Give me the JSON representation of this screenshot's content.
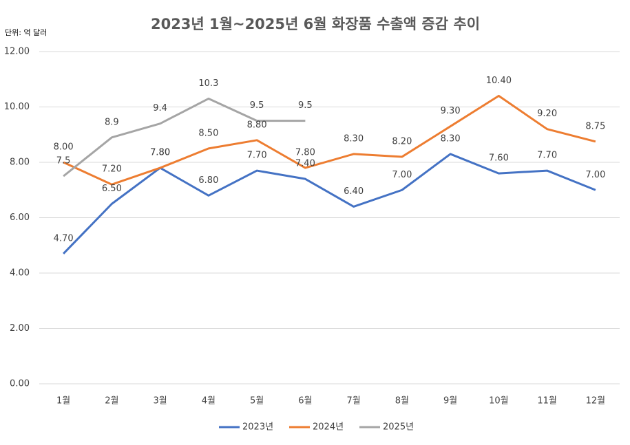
{
  "chart_data": {
    "type": "line",
    "title": "2023년 1월~2025년 6월 화장품 수출액 증감 추이",
    "unit_label": "단위: 억 달러",
    "categories": [
      "1월",
      "2월",
      "3월",
      "4월",
      "5월",
      "6월",
      "7월",
      "8월",
      "9월",
      "10월",
      "11월",
      "12월"
    ],
    "series": [
      {
        "name": "2023년",
        "color": "#4472c4",
        "values": [
          4.7,
          6.5,
          7.8,
          6.8,
          7.7,
          7.4,
          6.4,
          7.0,
          8.3,
          7.6,
          7.7,
          7.0
        ],
        "value_labels": [
          "4.70",
          "6.50",
          "7.80",
          "6.80",
          "7.70",
          "7.40",
          "6.40",
          "7.00",
          "8.30",
          "7.60",
          "7.70",
          "7.00"
        ]
      },
      {
        "name": "2024년",
        "color": "#ed7d31",
        "values": [
          8.0,
          7.2,
          7.8,
          8.5,
          8.8,
          7.8,
          8.3,
          8.2,
          9.3,
          10.4,
          9.2,
          8.75
        ],
        "value_labels": [
          "8.00",
          "7.20",
          "7.80",
          "8.50",
          "8.80",
          "7.80",
          "8.30",
          "8.20",
          "9.30",
          "10.40",
          "9.20",
          "8.75"
        ]
      },
      {
        "name": "2025년",
        "color": "#a5a5a5",
        "values": [
          7.5,
          8.9,
          9.4,
          10.3,
          9.5,
          9.5,
          null,
          null,
          null,
          null,
          null,
          null
        ]
      }
    ],
    "ylim": [
      0,
      12
    ],
    "yticks": [
      {
        "value": 0,
        "label": "0.00"
      },
      {
        "value": 2,
        "label": "2.00"
      },
      {
        "value": 4,
        "label": "4.00"
      },
      {
        "value": 6,
        "label": "6.00"
      },
      {
        "value": 8,
        "label": "8.00"
      },
      {
        "value": 10,
        "label": "10.00"
      },
      {
        "value": 12,
        "label": "12.00"
      }
    ],
    "grid": true,
    "legend": "bottom"
  }
}
